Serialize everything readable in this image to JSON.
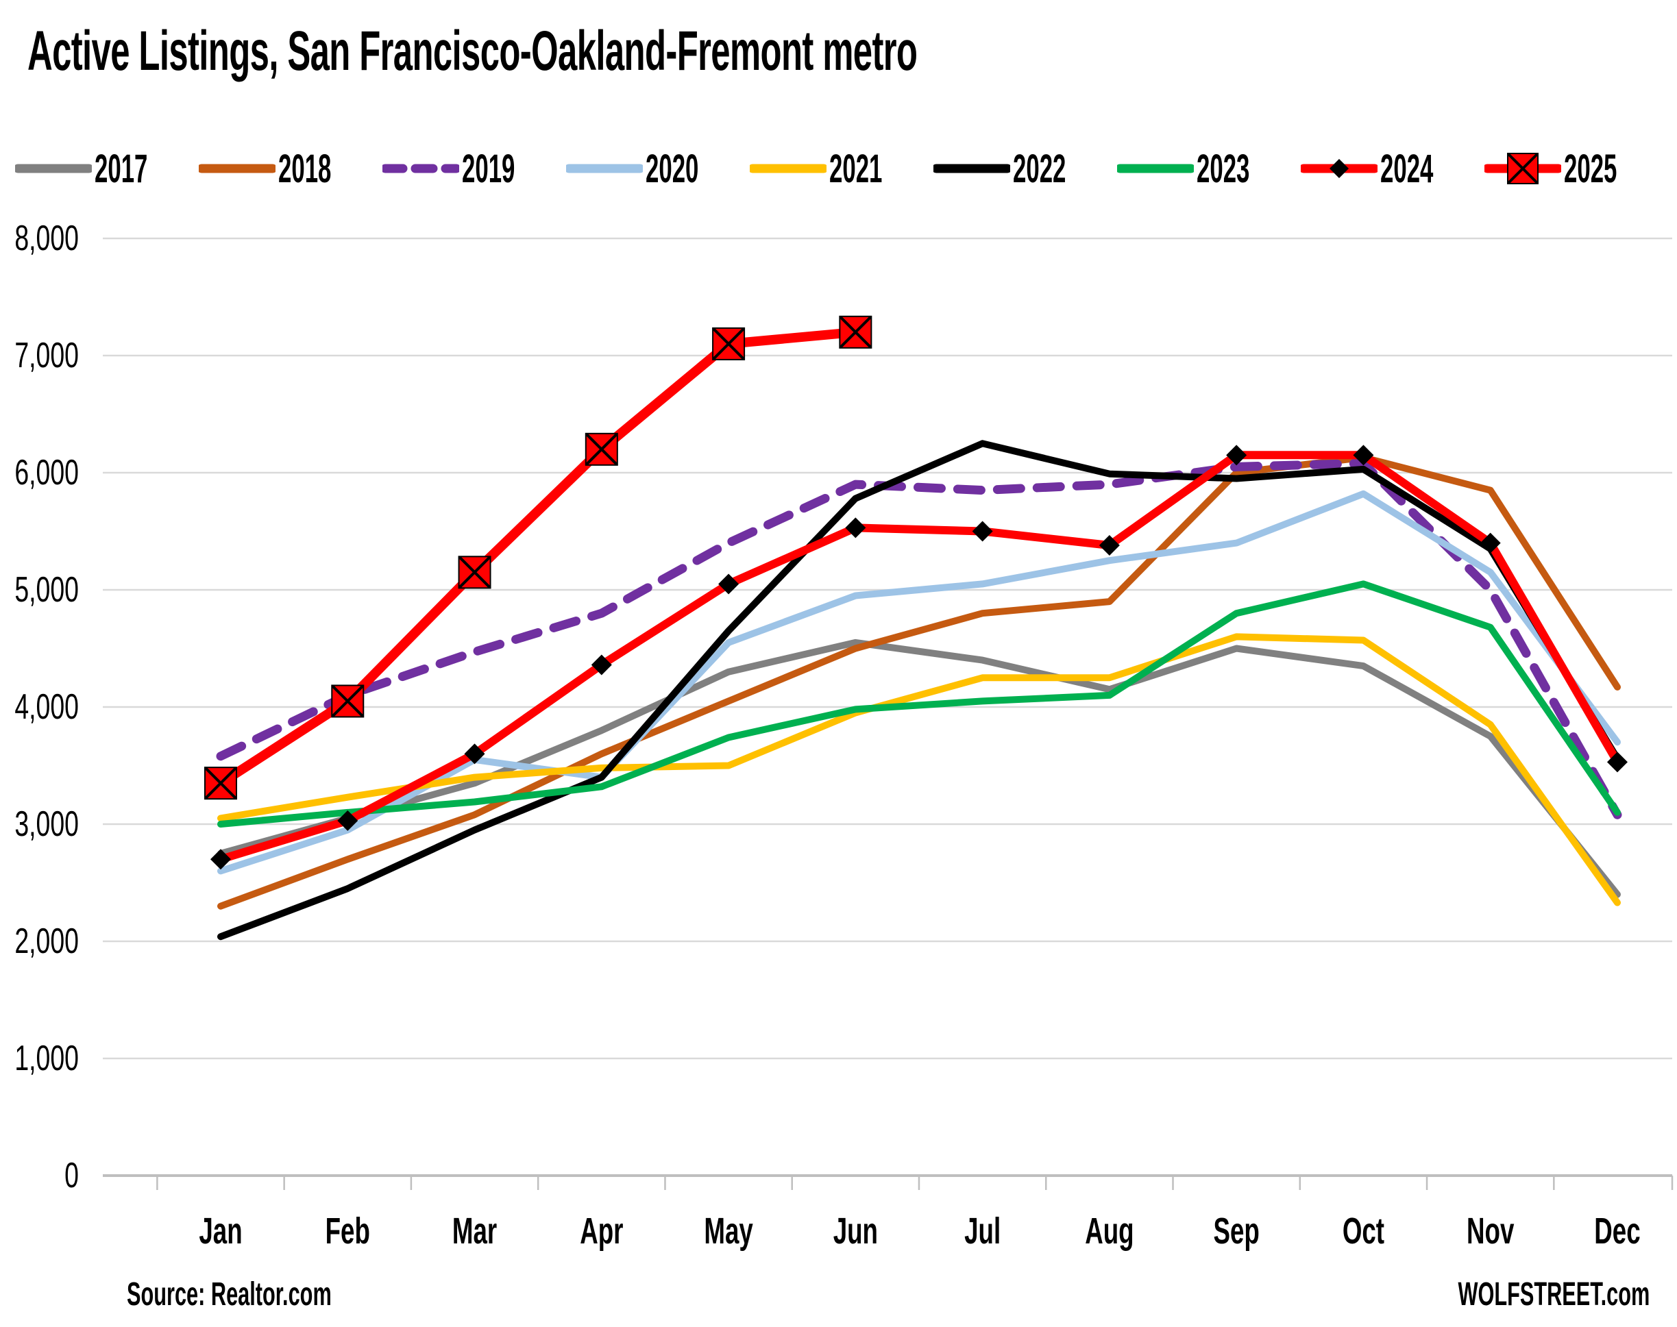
{
  "title": "Active Listings, San Francisco-Oakland-Fremont metro",
  "source_note": "Source: Realtor.com",
  "branding": "WOLFSTREET.com",
  "chart_data": {
    "type": "line",
    "title": "Active Listings, San Francisco-Oakland-Fremont metro",
    "categories": [
      "Jan",
      "Feb",
      "Mar",
      "Apr",
      "May",
      "Jun",
      "Jul",
      "Aug",
      "Sep",
      "Oct",
      "Nov",
      "Dec"
    ],
    "xlabel": "",
    "ylabel": "",
    "ylim": [
      0,
      8000
    ],
    "y_tick_step": 1000,
    "y_tick_labels": [
      "0",
      "1,000",
      "2,000",
      "3,000",
      "4,000",
      "5,000",
      "6,000",
      "7,000",
      "8,000"
    ],
    "grid": true,
    "legend_position": "top",
    "gridline_color": "#D9D9D9",
    "axis_line_color": "#BFBFBF",
    "series": [
      {
        "name": "2017",
        "color": "#808080",
        "style": "solid",
        "marker": "none",
        "values": [
          2750,
          3050,
          3350,
          3800,
          4300,
          4550,
          4400,
          4150,
          4500,
          4350,
          3750,
          2400
        ]
      },
      {
        "name": "2018",
        "color": "#C55A11",
        "style": "solid",
        "marker": "none",
        "values": [
          2300,
          2700,
          3080,
          3600,
          4050,
          4500,
          4800,
          4900,
          6000,
          6130,
          5850,
          4170
        ]
      },
      {
        "name": "2019",
        "color": "#7030A0",
        "style": "dashed",
        "marker": "none",
        "values": [
          3580,
          4100,
          4470,
          4800,
          5400,
          5900,
          5850,
          5900,
          6050,
          6080,
          5000,
          3080
        ]
      },
      {
        "name": "2020",
        "color": "#9DC3E6",
        "style": "solid",
        "marker": "none",
        "values": [
          2600,
          2950,
          3550,
          3400,
          4550,
          4950,
          5050,
          5250,
          5400,
          5820,
          5150,
          3700
        ]
      },
      {
        "name": "2021",
        "color": "#FFC000",
        "style": "solid",
        "marker": "none",
        "values": [
          3050,
          3230,
          3400,
          3480,
          3500,
          3950,
          4250,
          4250,
          4600,
          4570,
          3850,
          2330
        ]
      },
      {
        "name": "2022",
        "color": "#000000",
        "style": "solid",
        "marker": "none",
        "values": [
          2040,
          2450,
          2950,
          3400,
          4650,
          5780,
          6250,
          5990,
          5950,
          6030,
          5350,
          3560
        ]
      },
      {
        "name": "2023",
        "color": "#00B050",
        "style": "solid",
        "marker": "none",
        "values": [
          3000,
          3100,
          3190,
          3320,
          3740,
          3980,
          4050,
          4100,
          4800,
          5050,
          4680,
          3100
        ]
      },
      {
        "name": "2024",
        "color": "#FF0000",
        "style": "solid",
        "marker": "diamond",
        "marker_color": "#000000",
        "values": [
          2700,
          3030,
          3600,
          4360,
          5050,
          5530,
          5500,
          5380,
          6150,
          6150,
          5400,
          3530
        ]
      },
      {
        "name": "2025",
        "color": "#FF0000",
        "style": "solid",
        "marker": "square-x",
        "marker_color": "#FF0000",
        "values": [
          3350,
          4050,
          5150,
          6200,
          7100,
          7200,
          null,
          null,
          null,
          null,
          null,
          null
        ]
      }
    ]
  }
}
